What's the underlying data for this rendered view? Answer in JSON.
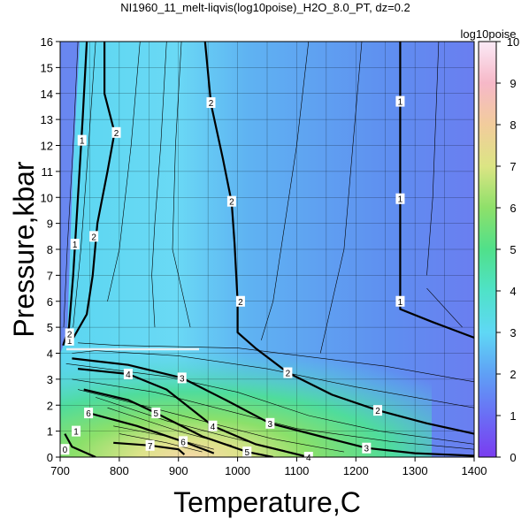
{
  "chart_data": {
    "type": "heatmap",
    "title": "NI1960_11_melt-liqvis(log10poise)_H2O_8.0_PT, dz=0.2",
    "xlabel": "Temperature,C",
    "ylabel": "Pressure,kbar",
    "xlim": [
      700,
      1400
    ],
    "ylim": [
      0,
      16
    ],
    "x_ticks": [
      700,
      800,
      900,
      1000,
      1100,
      1200,
      1300,
      1400
    ],
    "y_ticks": [
      0,
      1,
      2,
      3,
      4,
      5,
      6,
      7,
      8,
      9,
      10,
      11,
      12,
      13,
      14,
      15,
      16
    ],
    "grid": true,
    "colorbar": {
      "label": "log10poise",
      "range": [
        0,
        10
      ],
      "ticks": [
        0,
        1,
        2,
        3,
        4,
        5,
        6,
        7,
        8,
        9,
        10
      ]
    },
    "contour_labels": [
      {
        "value": "1",
        "x": 737,
        "y": 12.2
      },
      {
        "value": "1",
        "x": 725,
        "y": 8.2
      },
      {
        "value": "1",
        "x": 1275,
        "y": 13.7
      },
      {
        "value": "1",
        "x": 1275,
        "y": 9.95
      },
      {
        "value": "1",
        "x": 1275,
        "y": 6.0
      },
      {
        "value": "1",
        "x": 716,
        "y": 4.5
      },
      {
        "value": "1",
        "x": 727,
        "y": 1.0
      },
      {
        "value": "2",
        "x": 795,
        "y": 12.5
      },
      {
        "value": "2",
        "x": 757,
        "y": 8.5
      },
      {
        "value": "2",
        "x": 955,
        "y": 13.65
      },
      {
        "value": "2",
        "x": 990,
        "y": 9.85
      },
      {
        "value": "2",
        "x": 1005,
        "y": 6.0
      },
      {
        "value": "2",
        "x": 1085,
        "y": 3.25
      },
      {
        "value": "2",
        "x": 1237,
        "y": 1.8
      },
      {
        "value": "2",
        "x": 716,
        "y": 4.75
      },
      {
        "value": "3",
        "x": 906,
        "y": 3.05
      },
      {
        "value": "3",
        "x": 1055,
        "y": 1.3
      },
      {
        "value": "3",
        "x": 1218,
        "y": 0.35
      },
      {
        "value": "4",
        "x": 815,
        "y": 3.2
      },
      {
        "value": "4",
        "x": 958,
        "y": 1.2
      },
      {
        "value": "4",
        "x": 1120,
        "y": 0.0
      },
      {
        "value": "5",
        "x": 862,
        "y": 1.7
      },
      {
        "value": "5",
        "x": 1016,
        "y": 0.2
      },
      {
        "value": "6",
        "x": 748,
        "y": 1.7
      },
      {
        "value": "6",
        "x": 908,
        "y": 0.6
      },
      {
        "value": "7",
        "x": 852,
        "y": 0.45
      },
      {
        "value": "0",
        "x": 708,
        "y": 0.3
      }
    ]
  }
}
